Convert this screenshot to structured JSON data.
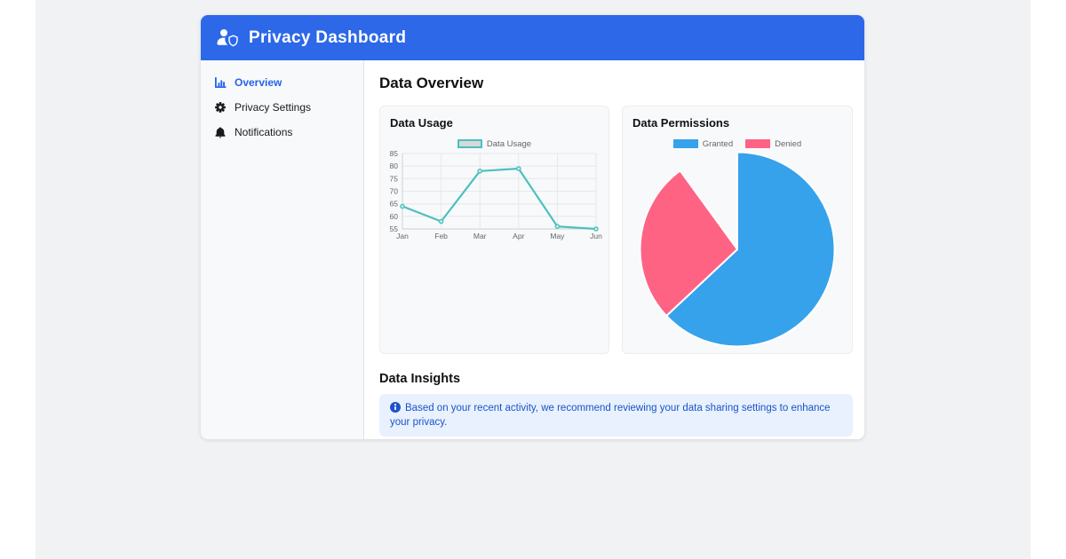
{
  "header": {
    "title": "Privacy Dashboard",
    "icon": "user-shield-icon",
    "bg_color": "#2c68e8"
  },
  "sidebar": {
    "active_color": "#2563eb",
    "items": [
      {
        "label": "Overview",
        "icon": "chart-bar-icon",
        "active": true
      },
      {
        "label": "Privacy Settings",
        "icon": "gear-icon",
        "active": false
      },
      {
        "label": "Notifications",
        "icon": "bell-icon",
        "active": false
      }
    ]
  },
  "main": {
    "title": "Data Overview",
    "insights": {
      "title": "Data Insights",
      "alert_text": "Based on your recent activity, we recommend reviewing your data sharing settings to enhance your privacy.",
      "alert_bg": "#e8f1fd",
      "alert_text_color": "#1a53c9",
      "alert_icon": "info-circle-icon"
    }
  },
  "chart_data": [
    {
      "type": "line",
      "title": "Data Usage",
      "legend": [
        "Data Usage"
      ],
      "legend_position": "top",
      "x": [
        "Jan",
        "Feb",
        "Mar",
        "Apr",
        "May",
        "Jun"
      ],
      "values": [
        64,
        58,
        78,
        79,
        56,
        55
      ],
      "ylim": [
        55,
        85
      ],
      "ytick_step": 5,
      "grid": true,
      "line_color": "#4bc0c0",
      "point_fill": "#d7ecec",
      "legend_box_fill": "#d9d9d9"
    },
    {
      "type": "pie",
      "title": "Data Permissions",
      "legend_position": "top",
      "start_angle_deg": 0,
      "slices": [
        {
          "label": "Granted",
          "percent": 63,
          "color": "#36a2eb"
        },
        {
          "label": "Denied",
          "percent": 27,
          "color": "#ff6384"
        }
      ],
      "unfilled_percent": 10
    }
  ]
}
